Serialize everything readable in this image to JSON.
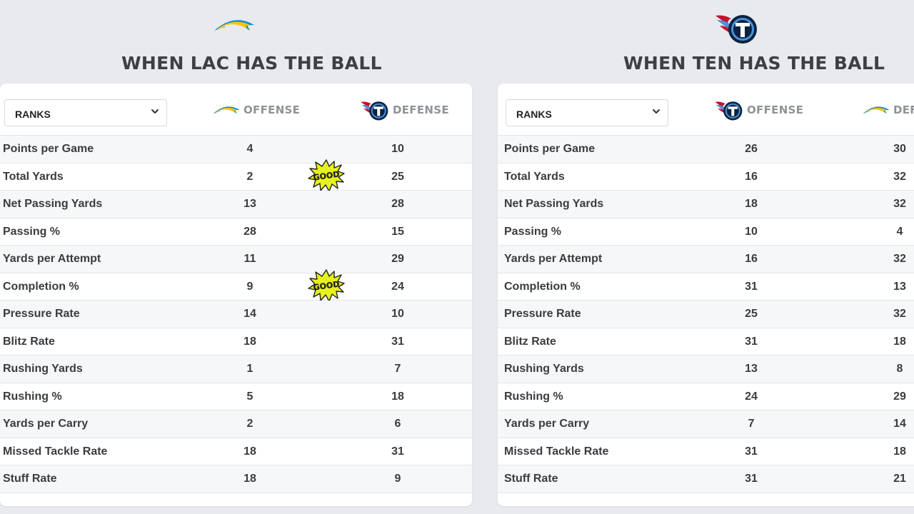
{
  "sections": [
    {
      "heading": "WHEN LAC HAS THE BALL",
      "select_value": "RANKS",
      "col1_label": "OFFENSE",
      "col2_label": "DEFENSE",
      "rows": [
        {
          "stat": "Points per Game",
          "off": "4",
          "def": "10"
        },
        {
          "stat": "Total Yards",
          "off": "2",
          "def": "25"
        },
        {
          "stat": "Net Passing Yards",
          "off": "13",
          "def": "28"
        },
        {
          "stat": "Passing %",
          "off": "28",
          "def": "15"
        },
        {
          "stat": "Yards per Attempt",
          "off": "11",
          "def": "29"
        },
        {
          "stat": "Completion %",
          "off": "9",
          "def": "24"
        },
        {
          "stat": "Pressure Rate",
          "off": "14",
          "def": "10"
        },
        {
          "stat": "Blitz Rate",
          "off": "18",
          "def": "31"
        },
        {
          "stat": "Rushing Yards",
          "off": "1",
          "def": "7"
        },
        {
          "stat": "Rushing %",
          "off": "5",
          "def": "18"
        },
        {
          "stat": "Yards per Carry",
          "off": "2",
          "def": "6"
        },
        {
          "stat": "Missed Tackle Rate",
          "off": "18",
          "def": "31"
        },
        {
          "stat": "Stuff Rate",
          "off": "18",
          "def": "9"
        }
      ],
      "badges": [
        {
          "row_index": 1,
          "text": "GOOD"
        },
        {
          "row_index": 5,
          "text": "GOOD"
        }
      ]
    },
    {
      "heading": "WHEN TEN HAS THE BALL",
      "select_value": "RANKS",
      "col1_label": "OFFENSE",
      "col2_label": "DEF",
      "rows": [
        {
          "stat": "Points per Game",
          "off": "26",
          "def": "30"
        },
        {
          "stat": "Total Yards",
          "off": "16",
          "def": "32"
        },
        {
          "stat": "Net Passing Yards",
          "off": "18",
          "def": "32"
        },
        {
          "stat": "Passing %",
          "off": "10",
          "def": "4"
        },
        {
          "stat": "Yards per Attempt",
          "off": "16",
          "def": "32"
        },
        {
          "stat": "Completion %",
          "off": "31",
          "def": "13"
        },
        {
          "stat": "Pressure Rate",
          "off": "25",
          "def": "32"
        },
        {
          "stat": "Blitz Rate",
          "off": "31",
          "def": "18"
        },
        {
          "stat": "Rushing Yards",
          "off": "13",
          "def": "8"
        },
        {
          "stat": "Rushing %",
          "off": "24",
          "def": "29"
        },
        {
          "stat": "Yards per Carry",
          "off": "7",
          "def": "14"
        },
        {
          "stat": "Missed Tackle Rate",
          "off": "31",
          "def": "18"
        },
        {
          "stat": "Stuff Rate",
          "off": "31",
          "def": "21"
        }
      ],
      "badges": []
    }
  ],
  "colors": {
    "chargers_blue": "#0a8fd6",
    "chargers_gold": "#ffc20e",
    "titans_navy": "#0c2340",
    "titans_light_blue": "#4b92db",
    "titans_red": "#c8102e",
    "badge_yellow": "#e7f21a"
  },
  "icons": {
    "lac": "chargers-bolt-logo",
    "ten": "titans-t-logo",
    "badge": "good-burst-badge",
    "caret": "chevron-down-icon"
  }
}
